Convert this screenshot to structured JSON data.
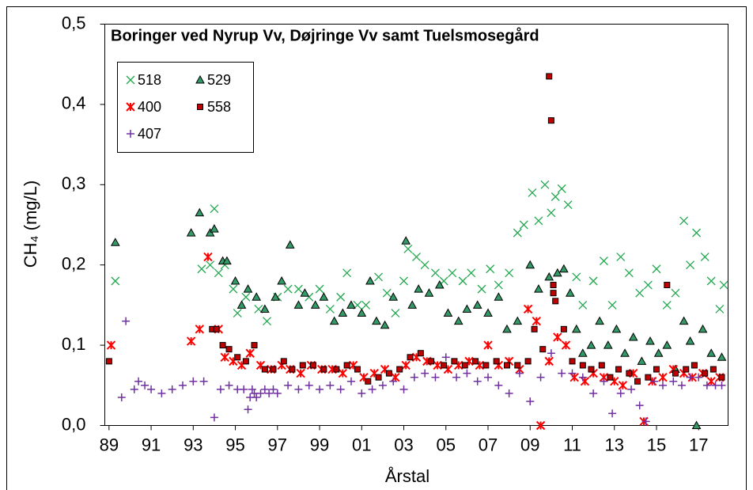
{
  "chart_data": {
    "type": "scatter",
    "title": "Boringer ved Nyrup Vv, Døjringe Vv samt Tuelsmosegård",
    "x_label": "Årstal",
    "y_label": "CH₄ (mg/L)",
    "xlim": [
      88.8,
      118.4
    ],
    "ylim": [
      0,
      0.5
    ],
    "xticks": [
      89,
      91,
      93,
      95,
      97,
      99,
      {
        "value": 101,
        "label": "01"
      },
      {
        "value": 103,
        "label": "03"
      },
      {
        "value": 105,
        "label": "05"
      },
      {
        "value": 107,
        "label": "07"
      },
      {
        "value": 109,
        "label": "09"
      },
      {
        "value": 111,
        "label": "11"
      },
      {
        "value": 113,
        "label": "13"
      },
      {
        "value": 115,
        "label": "15"
      },
      {
        "value": 117,
        "label": "17"
      }
    ],
    "yticks": [
      {
        "value": 0,
        "label": "0,0"
      },
      {
        "value": 0.1,
        "label": "0,1"
      },
      {
        "value": 0.2,
        "label": "0,2"
      },
      {
        "value": 0.3,
        "label": "0,3"
      },
      {
        "value": 0.4,
        "label": "0,4"
      },
      {
        "value": 0.5,
        "label": "0,5"
      }
    ],
    "legend": "upper left",
    "series": [
      {
        "name": "518",
        "color": "#22a84f",
        "marker": "x",
        "x": [
          89.3,
          93.4,
          93.8,
          94.0,
          94.2,
          94.5,
          94.9,
          95.1,
          95.5,
          96.1,
          96.5,
          97.0,
          97.5,
          98.0,
          98.5,
          99.0,
          99.5,
          100.0,
          100.3,
          100.8,
          101.2,
          101.8,
          102.2,
          102.6,
          103.0,
          103.2,
          103.6,
          104.0,
          104.5,
          104.9,
          105.3,
          105.8,
          106.2,
          106.7,
          107.1,
          107.5,
          108.0,
          108.4,
          108.7,
          109.1,
          109.4,
          109.7,
          110.0,
          110.2,
          110.5,
          110.8,
          111.2,
          111.5,
          112.0,
          112.5,
          112.9,
          113.3,
          113.7,
          114.2,
          114.6,
          115.0,
          115.5,
          115.9,
          116.3,
          116.6,
          116.9,
          117.3,
          117.6,
          118.0,
          118.2
        ],
        "values": [
          0.18,
          0.195,
          0.2,
          0.27,
          0.19,
          0.2,
          0.17,
          0.14,
          0.16,
          0.145,
          0.13,
          0.16,
          0.17,
          0.17,
          0.16,
          0.17,
          0.145,
          0.16,
          0.19,
          0.15,
          0.15,
          0.185,
          0.165,
          0.14,
          0.18,
          0.22,
          0.21,
          0.2,
          0.19,
          0.18,
          0.19,
          0.18,
          0.19,
          0.17,
          0.195,
          0.175,
          0.19,
          0.24,
          0.25,
          0.29,
          0.255,
          0.3,
          0.265,
          0.285,
          0.295,
          0.275,
          0.185,
          0.15,
          0.18,
          0.205,
          0.15,
          0.21,
          0.19,
          0.165,
          0.175,
          0.195,
          0.15,
          0.165,
          0.255,
          0.2,
          0.24,
          0.21,
          0.18,
          0.145,
          0.175
        ]
      },
      {
        "name": "529",
        "color": "#339966",
        "marker": "triangle",
        "x": [
          89.3,
          92.9,
          93.3,
          93.8,
          94.0,
          94.4,
          94.6,
          95.0,
          95.3,
          95.6,
          96.0,
          96.4,
          96.9,
          97.2,
          97.6,
          98.0,
          98.3,
          98.8,
          99.2,
          99.7,
          100.1,
          100.5,
          101.0,
          101.4,
          101.7,
          102.1,
          102.5,
          103.1,
          103.4,
          103.7,
          104.2,
          104.7,
          105.1,
          105.6,
          106.0,
          106.5,
          107.0,
          107.5,
          107.9,
          108.4,
          109.0,
          109.4,
          109.9,
          110.3,
          110.6,
          110.9,
          111.2,
          111.5,
          111.9,
          112.3,
          112.7,
          113.1,
          113.5,
          113.9,
          114.3,
          114.7,
          115.1,
          115.5,
          115.9,
          116.3,
          116.6,
          116.9,
          117.2,
          117.6,
          118.1
        ],
        "values": [
          0.228,
          0.24,
          0.265,
          0.24,
          0.245,
          0.205,
          0.205,
          0.18,
          0.15,
          0.17,
          0.16,
          0.145,
          0.16,
          0.18,
          0.225,
          0.15,
          0.165,
          0.15,
          0.16,
          0.13,
          0.14,
          0.15,
          0.14,
          0.18,
          0.13,
          0.125,
          0.16,
          0.23,
          0.15,
          0.17,
          0.165,
          0.175,
          0.14,
          0.13,
          0.145,
          0.15,
          0.14,
          0.16,
          0.12,
          0.13,
          0.2,
          0.17,
          0.185,
          0.19,
          0.195,
          0.165,
          0.12,
          0.09,
          0.1,
          0.13,
          0.1,
          0.12,
          0.09,
          0.11,
          0.08,
          0.105,
          0.09,
          0.1,
          0.07,
          0.13,
          0.105,
          0,
          0.12,
          0.09,
          0.085
        ]
      },
      {
        "name": "400",
        "color": "#ff0000",
        "marker": "asterisk",
        "x": [
          89.1,
          92.9,
          93.3,
          93.7,
          94.2,
          94.5,
          94.9,
          95.3,
          95.7,
          96.2,
          96.7,
          97.2,
          97.6,
          98.1,
          98.6,
          99.1,
          99.6,
          100.1,
          100.6,
          101.1,
          101.6,
          102.1,
          102.6,
          103.1,
          103.6,
          104.1,
          104.6,
          105.1,
          105.6,
          106.1,
          106.6,
          107.0,
          107.5,
          108.0,
          108.5,
          108.9,
          109.3,
          109.5,
          109.9,
          110.3,
          110.7,
          111.1,
          111.6,
          112.0,
          112.5,
          113.0,
          113.4,
          113.9,
          114.4,
          114.8,
          115.3,
          115.8,
          116.3,
          116.7,
          117.2,
          117.6,
          118.0
        ],
        "values": [
          0.1,
          0.105,
          0.12,
          0.21,
          0.12,
          0.085,
          0.08,
          0.075,
          0.09,
          0.075,
          0.07,
          0.075,
          0.07,
          0.065,
          0.075,
          0.07,
          0.07,
          0.065,
          0.075,
          0.06,
          0.065,
          0.07,
          0.06,
          0.075,
          0.085,
          0.08,
          0.075,
          0.07,
          0.075,
          0.08,
          0.075,
          0.1,
          0.075,
          0.08,
          0.07,
          0.145,
          0.13,
          0,
          0.08,
          0.11,
          0.1,
          0.06,
          0.055,
          0.065,
          0.06,
          0.055,
          0.05,
          0.065,
          0.005,
          0.055,
          0.06,
          0.07,
          0.065,
          0.06,
          0.065,
          0.055,
          0.06
        ]
      },
      {
        "name": "558",
        "color": "#c00000",
        "marker": "square",
        "x": [
          89.0,
          93.9,
          94.1,
          94.4,
          94.7,
          95.1,
          95.5,
          95.9,
          96.4,
          96.8,
          97.3,
          97.7,
          98.2,
          98.7,
          99.2,
          99.8,
          100.3,
          100.8,
          101.3,
          101.8,
          102.3,
          102.8,
          103.3,
          103.8,
          104.3,
          104.9,
          105.4,
          105.9,
          106.4,
          106.9,
          107.4,
          107.9,
          108.4,
          108.9,
          109.2,
          109.6,
          109.9,
          110.0,
          110.1,
          110.1,
          110.2,
          110.6,
          111.0,
          111.5,
          111.9,
          112.4,
          112.8,
          113.2,
          113.7,
          114.1,
          114.6,
          115.0,
          115.5,
          115.9,
          116.4,
          116.8,
          117.3,
          117.7,
          118.1
        ],
        "values": [
          0.08,
          0.12,
          0.12,
          0.1,
          0.095,
          0.085,
          0.08,
          0.1,
          0.07,
          0.07,
          0.08,
          0.07,
          0.075,
          0.075,
          0.07,
          0.07,
          0.075,
          0.07,
          0.055,
          0.06,
          0.065,
          0.07,
          0.085,
          0.09,
          0.08,
          0.075,
          0.08,
          0.075,
          0.08,
          0.075,
          0.08,
          0.075,
          0.075,
          0.08,
          0.12,
          0.095,
          0.435,
          0.38,
          0.165,
          0.175,
          0.155,
          0.12,
          0.08,
          0.075,
          0.07,
          0.075,
          0.06,
          0.07,
          0.065,
          0.055,
          0.06,
          0.07,
          0.175,
          0.065,
          0.07,
          0.075,
          0.065,
          0.07,
          0.06
        ]
      },
      {
        "name": "407",
        "color": "#7030a0",
        "marker": "plus",
        "x": [
          89.6,
          89.8,
          90.2,
          90.4,
          90.7,
          91.0,
          91.5,
          92.0,
          92.5,
          93.0,
          93.5,
          94.0,
          94.3,
          94.7,
          95.1,
          95.4,
          95.6,
          95.7,
          95.8,
          95.9,
          96.0,
          96.2,
          96.4,
          96.6,
          96.8,
          97.0,
          97.5,
          98.0,
          98.5,
          99.0,
          99.5,
          100.0,
          100.5,
          101.0,
          101.5,
          102.0,
          102.5,
          103.0,
          103.5,
          104.0,
          104.5,
          105.0,
          105.5,
          106.0,
          106.5,
          107.0,
          107.5,
          108.0,
          108.5,
          109.0,
          109.5,
          110.0,
          110.5,
          111.0,
          111.5,
          112.0,
          112.5,
          112.9,
          113.3,
          113.8,
          114.2,
          114.5,
          114.9,
          115.3,
          115.8,
          116.2,
          116.6,
          117.0,
          117.4,
          117.8,
          118.1
        ],
        "values": [
          0.035,
          0.13,
          0.045,
          0.055,
          0.05,
          0.045,
          0.04,
          0.045,
          0.05,
          0.055,
          0.055,
          0.01,
          0.045,
          0.05,
          0.045,
          0.045,
          0.02,
          0.035,
          0.045,
          0.04,
          0.035,
          0.04,
          0.045,
          0.04,
          0.045,
          0.04,
          0.05,
          0.045,
          0.05,
          0.045,
          0.05,
          0.045,
          0.055,
          0.04,
          0.045,
          0.05,
          0.055,
          0.045,
          0.06,
          0.065,
          0.06,
          0.085,
          0.06,
          0.065,
          0.055,
          0.06,
          0.05,
          0.04,
          0.065,
          0.03,
          0.06,
          0.09,
          0.065,
          0.065,
          0.06,
          0.04,
          0.055,
          0.015,
          0.04,
          0.045,
          0.025,
          0.005,
          0.055,
          0.05,
          0.055,
          0.05,
          0.06,
          0.06,
          0.05,
          0.05,
          0.05
        ]
      }
    ]
  }
}
